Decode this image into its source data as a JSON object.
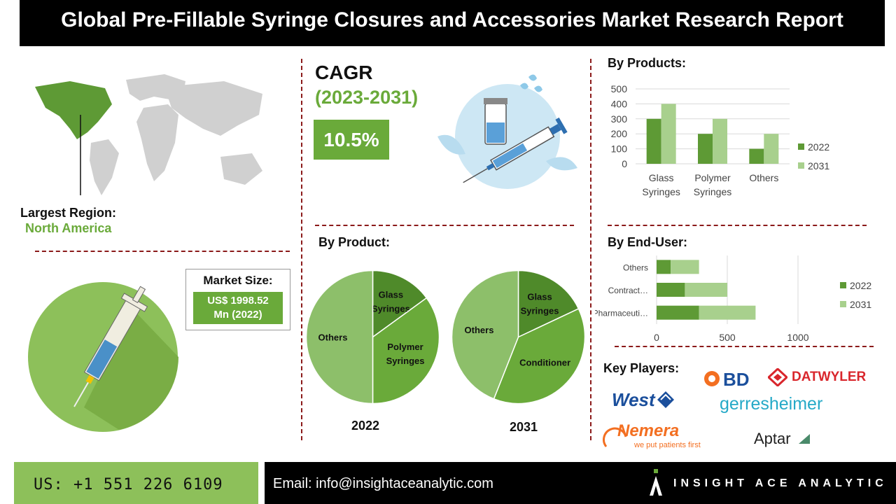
{
  "header": {
    "title": "Global Pre-Fillable Syringe Closures and Accessories Market Research Report"
  },
  "region": {
    "label": "Largest Region:",
    "value": "North America"
  },
  "cagr": {
    "label": "CAGR",
    "period": "(2023-2031)",
    "value": "10.5%"
  },
  "market_size": {
    "label": "Market Size:",
    "value_line1": "US$ 1998.52",
    "value_line2": "Mn (2022)"
  },
  "sections": {
    "by_products": "By Products:",
    "by_product": "By Product:",
    "by_end_user": "By End-User:",
    "key_players": "Key Players:"
  },
  "key_players": {
    "bd": "BD",
    "datwyler": "DATWYLER",
    "west": "West",
    "gerresheimer": "gerresheimer",
    "nemera": "Nemera",
    "nemera_tagline": "we put patients first",
    "aptar": "Aptar"
  },
  "footer": {
    "phone": "US: +1 551 226 6109",
    "email": "Email: info@insightaceanalytic.com",
    "brand": "INSIGHT ACE ANALYTIC"
  },
  "colors": {
    "dark_green": "#5e9a35",
    "light_green": "#a8d08d",
    "accent_green": "#6aaa3a",
    "dash_red": "#8b1a1a"
  },
  "chart_data": [
    {
      "type": "bar",
      "title": "By Products:",
      "categories": [
        "Glass Syringes",
        "Polymer Syringes",
        "Others"
      ],
      "series": [
        {
          "name": "2022",
          "values": [
            300,
            200,
            100
          ]
        },
        {
          "name": "2031",
          "values": [
            400,
            300,
            200
          ]
        }
      ],
      "ylim": [
        0,
        500
      ],
      "yticks": [
        0,
        100,
        200,
        300,
        400,
        500
      ],
      "legend": "right"
    },
    {
      "type": "pie",
      "title": "2022",
      "labels": [
        "Glass Syringes",
        "Polymer Syringes",
        "Others"
      ],
      "values": [
        15,
        35,
        50
      ]
    },
    {
      "type": "pie",
      "title": "2031",
      "labels": [
        "Glass Syringes",
        "Conditioner",
        "Others"
      ],
      "values": [
        18,
        38,
        44
      ]
    },
    {
      "type": "bar",
      "orientation": "horizontal",
      "title": "By End-User:",
      "categories": [
        "Others",
        "Contract…",
        "Pharmaceuti…"
      ],
      "series": [
        {
          "name": "2022",
          "values": [
            100,
            200,
            300
          ]
        },
        {
          "name": "2031",
          "values": [
            200,
            300,
            400
          ]
        }
      ],
      "xlim": [
        0,
        1000
      ],
      "xticks": [
        0,
        500,
        1000
      ],
      "legend": "right"
    }
  ]
}
